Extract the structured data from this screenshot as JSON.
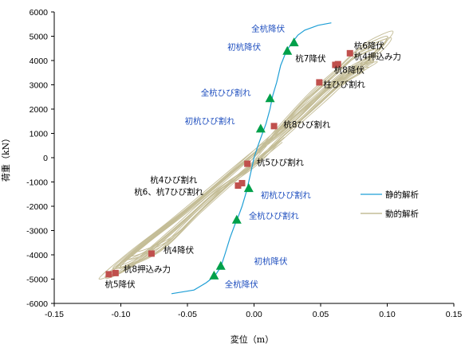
{
  "chart_data": {
    "type": "line",
    "xlabel": "変位（m）",
    "ylabel": "荷重（kN）",
    "xlim": [
      -0.15,
      0.15
    ],
    "ylim": [
      -6000,
      6000
    ],
    "x_ticks": [
      -0.15,
      -0.1,
      -0.05,
      0,
      0.05,
      0.1,
      0.15
    ],
    "x_tick_labels": [
      "-0.15",
      "-0.10",
      "-0.05",
      "0.00",
      "0.05",
      "0.10",
      "0.15"
    ],
    "y_ticks": [
      -6000,
      -5000,
      -4000,
      -3000,
      -2000,
      -1000,
      0,
      1000,
      2000,
      3000,
      4000,
      5000,
      6000
    ],
    "y_tick_labels": [
      "-6000",
      "-5000",
      "-4000",
      "-3000",
      "-2000",
      "-1000",
      "0",
      "1000",
      "2000",
      "3000",
      "4000",
      "5000",
      "6000"
    ],
    "grid": false,
    "legend_position": "right",
    "colors": {
      "static": "#1f9fd6",
      "dynamic": "#c4bd97",
      "marker_square": "#c0504d",
      "marker_triangle": "#00a04a",
      "label_blue": "#1f4fbf"
    },
    "series": [
      {
        "name": "静的解析",
        "style": "line",
        "x": [
          -0.062,
          -0.045,
          -0.036,
          -0.03,
          -0.028,
          -0.025,
          -0.022,
          -0.018,
          -0.014,
          -0.012,
          -0.009,
          -0.006,
          -0.004,
          -0.002,
          0.0,
          0.003,
          0.006,
          0.009,
          0.012,
          0.014,
          0.017,
          0.02,
          0.024,
          0.028,
          0.033,
          0.038,
          0.048,
          0.058
        ],
        "y": [
          -5600,
          -5450,
          -5150,
          -4900,
          -4750,
          -4500,
          -4000,
          -3300,
          -2700,
          -2450,
          -2000,
          -1450,
          -1000,
          -500,
          0,
          500,
          950,
          1400,
          2000,
          2550,
          3100,
          3800,
          4350,
          4700,
          5050,
          5250,
          5450,
          5550
        ]
      },
      {
        "name": "動的解析",
        "style": "hysteresis",
        "x": [
          0.0,
          0.02,
          0.04,
          0.06,
          0.08,
          0.1,
          0.09,
          0.06,
          0.03,
          0.0,
          -0.03,
          -0.06,
          -0.09,
          -0.11,
          -0.09,
          -0.06,
          -0.03,
          0.0,
          0.02,
          0.05,
          0.07,
          0.09,
          0.07,
          0.04,
          0.01,
          -0.02,
          -0.05,
          -0.08,
          -0.1,
          -0.07,
          -0.04,
          -0.01,
          0.02
        ],
        "y": [
          0,
          1300,
          2500,
          3500,
          4500,
          5000,
          4300,
          3100,
          1500,
          200,
          -1200,
          -2600,
          -3900,
          -4900,
          -4400,
          -3000,
          -1500,
          -300,
          800,
          2300,
          3300,
          4000,
          3600,
          2200,
          700,
          -800,
          -2200,
          -3500,
          -4500,
          -3800,
          -2200,
          -700,
          700
        ]
      },
      {
        "name": "",
        "style": "squares",
        "x": [
          0.072,
          0.063,
          0.061,
          0.049,
          0.015,
          -0.005,
          -0.012,
          -0.009,
          -0.077,
          -0.104,
          -0.109
        ],
        "y": [
          4300,
          3850,
          3820,
          3100,
          1300,
          -250,
          -1150,
          -1050,
          -3950,
          -4750,
          -4800
        ]
      },
      {
        "name": "",
        "style": "triangles",
        "x": [
          0.03,
          0.025,
          0.012,
          0.005,
          -0.004,
          -0.013,
          -0.025,
          -0.03
        ],
        "y": [
          4750,
          4400,
          2450,
          1200,
          -1250,
          -2550,
          -4450,
          -4850
        ]
      }
    ],
    "annotations": [
      {
        "text": "全杭降伏",
        "color": "blue",
        "x": -0.002,
        "y": 5200
      },
      {
        "text": "初杭降伏",
        "color": "blue",
        "x": -0.02,
        "y": 4450
      },
      {
        "text": "全杭ひび割れ",
        "color": "blue",
        "x": -0.04,
        "y": 2550
      },
      {
        "text": "初杭ひび割れ",
        "color": "blue",
        "x": -0.052,
        "y": 1400
      },
      {
        "text": "杭6降伏",
        "color": "black",
        "x": 0.075,
        "y": 4500
      },
      {
        "text": "杭4押込み力",
        "color": "black",
        "x": 0.075,
        "y": 4050
      },
      {
        "text": "杭7降伏",
        "color": "black",
        "x": 0.031,
        "y": 3970
      },
      {
        "text": "杭8降伏",
        "color": "black",
        "x": 0.06,
        "y": 3500
      },
      {
        "text": "柱ひび割れ",
        "color": "black",
        "x": 0.052,
        "y": 2900
      },
      {
        "text": "杭8ひび割れ",
        "color": "black",
        "x": 0.022,
        "y": 1250
      },
      {
        "text": "杭5ひび割れ",
        "color": "black",
        "x": 0.002,
        "y": -310
      },
      {
        "text": "杭4ひび割れ",
        "color": "black",
        "x": -0.078,
        "y": -1030
      },
      {
        "text": "杭6、杭7ひび割れ",
        "color": "black",
        "x": -0.09,
        "y": -1520
      },
      {
        "text": "初杭ひび割れ",
        "color": "blue",
        "x": 0.005,
        "y": -1650
      },
      {
        "text": "全杭ひび割れ",
        "color": "blue",
        "x": -0.004,
        "y": -2500
      },
      {
        "text": "杭4降伏",
        "color": "black",
        "x": -0.068,
        "y": -3920
      },
      {
        "text": "初杭降伏",
        "color": "blue",
        "x": 0.0,
        "y": -4380
      },
      {
        "text": "杭8押込み力",
        "color": "black",
        "x": -0.098,
        "y": -4710
      },
      {
        "text": "杭5降伏",
        "color": "black",
        "x": -0.112,
        "y": -5330
      },
      {
        "text": "全杭降伏",
        "color": "blue",
        "x": -0.022,
        "y": -5330
      }
    ]
  }
}
